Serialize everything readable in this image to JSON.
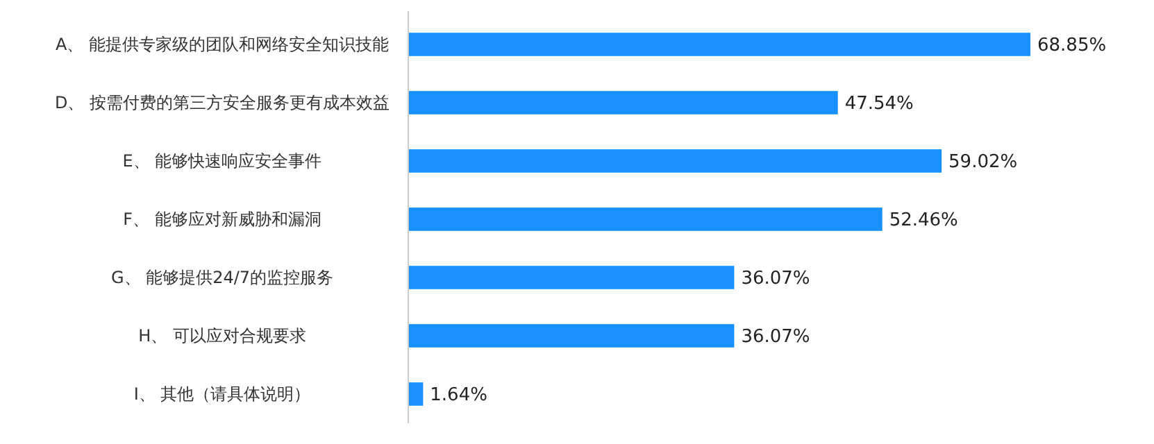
{
  "chart_data": {
    "type": "bar",
    "orientation": "horizontal",
    "color": "#1890ff",
    "categories": [
      "A、 能提供专家级的团队和网络安全知识技能",
      "D、 按需付费的第三方安全服务更有成本效益",
      "E、 能够快速响应安全事件",
      "F、 能够应对新威胁和漏洞",
      "G、 能够提供24/7的监控服务",
      "H、 可以应对合规要求",
      "I、 其他（请具体说明）"
    ],
    "values": [
      68.85,
      47.54,
      59.02,
      52.46,
      36.07,
      36.07,
      1.64
    ],
    "value_labels": [
      "68.85%",
      "47.54%",
      "59.02%",
      "52.46%",
      "36.07%",
      "36.07%",
      "1.64%"
    ]
  }
}
